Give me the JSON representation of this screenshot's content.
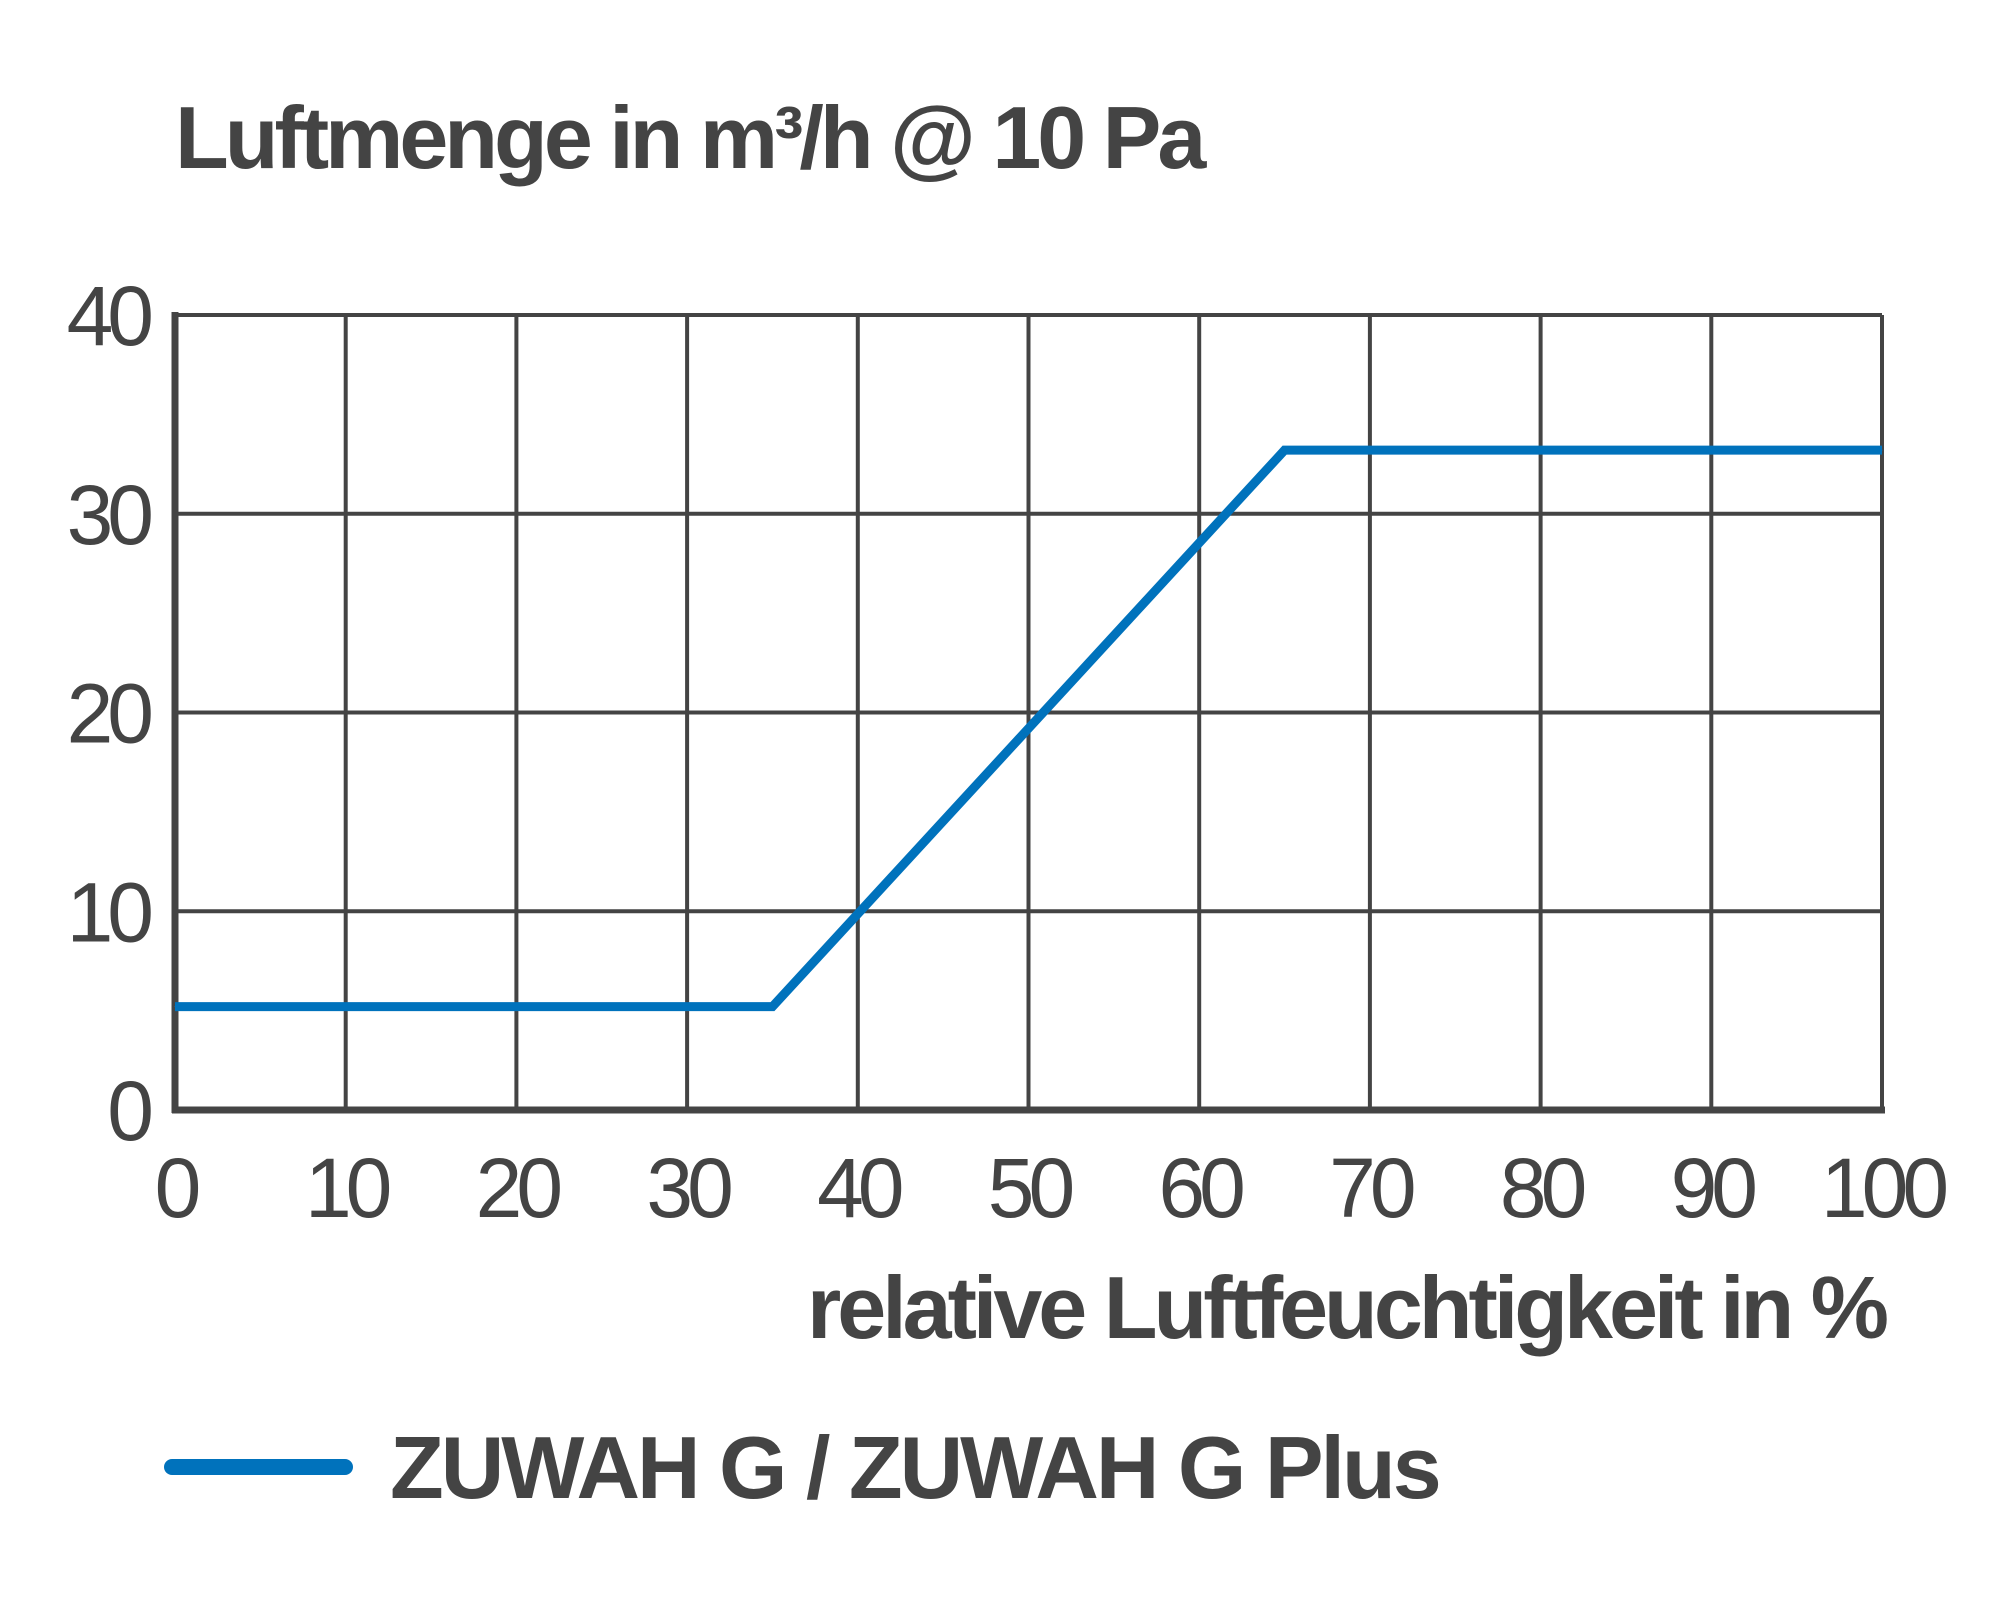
{
  "chart_data": {
    "type": "line",
    "title": "Luftmenge in m³/h @ 10 Pa",
    "xlabel": "relative Luftfeuchtigkeit in %",
    "ylabel": "",
    "xlim": [
      0,
      100
    ],
    "ylim": [
      0,
      40
    ],
    "x_ticks": [
      0,
      10,
      20,
      30,
      40,
      50,
      60,
      70,
      80,
      90,
      100
    ],
    "y_ticks": [
      0,
      10,
      20,
      30,
      40
    ],
    "grid": true,
    "legend_position": "bottom-left",
    "series": [
      {
        "name": "ZUWAH G / ZUWAH G Plus",
        "color": "#0072BC",
        "x": [
          0,
          35,
          65,
          100
        ],
        "y": [
          5.2,
          5.2,
          33.2,
          33.2
        ]
      }
    ]
  }
}
